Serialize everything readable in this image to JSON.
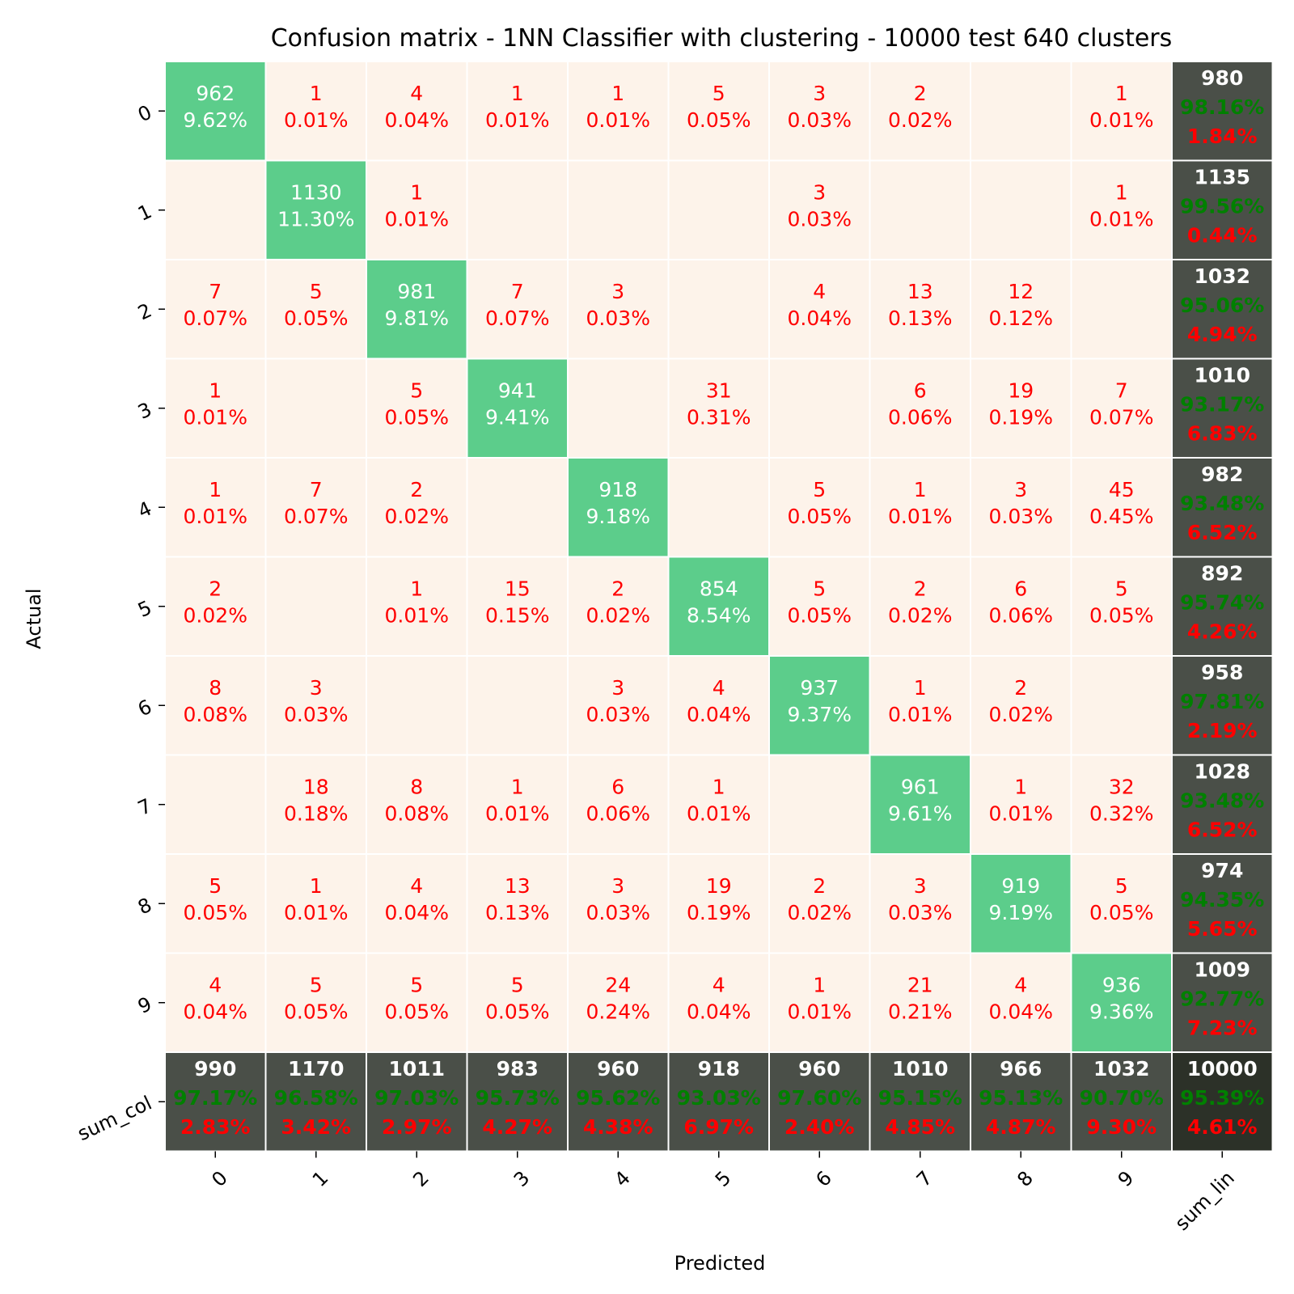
{
  "chart_data": {
    "type": "heatmap",
    "title": "Confusion matrix - 1NN Classifier with clustering - 10000 test 640 clusters",
    "xlabel": "Predicted",
    "ylabel": "Actual",
    "x_tick_labels": [
      "0",
      "1",
      "2",
      "3",
      "4",
      "5",
      "6",
      "7",
      "8",
      "9",
      "sum_lin"
    ],
    "y_tick_labels": [
      "0",
      "1",
      "2",
      "3",
      "4",
      "5",
      "6",
      "7",
      "8",
      "9",
      "sum_col"
    ],
    "classes": [
      "0",
      "1",
      "2",
      "3",
      "4",
      "5",
      "6",
      "7",
      "8",
      "9"
    ],
    "total": 10000,
    "matrix": [
      [
        962,
        1,
        4,
        1,
        1,
        5,
        3,
        2,
        0,
        1
      ],
      [
        0,
        1130,
        1,
        0,
        0,
        0,
        3,
        0,
        0,
        1
      ],
      [
        7,
        5,
        981,
        7,
        3,
        0,
        4,
        13,
        12,
        0
      ],
      [
        1,
        0,
        5,
        941,
        0,
        31,
        0,
        6,
        19,
        7
      ],
      [
        1,
        7,
        2,
        0,
        918,
        0,
        5,
        1,
        3,
        45
      ],
      [
        2,
        0,
        1,
        15,
        2,
        854,
        5,
        2,
        6,
        5
      ],
      [
        8,
        3,
        0,
        0,
        3,
        4,
        937,
        1,
        2,
        0
      ],
      [
        0,
        18,
        8,
        1,
        6,
        1,
        0,
        961,
        1,
        32
      ],
      [
        5,
        1,
        4,
        13,
        3,
        19,
        2,
        3,
        919,
        5
      ],
      [
        4,
        5,
        5,
        5,
        24,
        4,
        1,
        21,
        4,
        936
      ]
    ],
    "row_sums": [
      {
        "total": "980",
        "correct": "98.16%",
        "error": "1.84%"
      },
      {
        "total": "1135",
        "correct": "99.56%",
        "error": "0.44%"
      },
      {
        "total": "1032",
        "correct": "95.06%",
        "error": "4.94%"
      },
      {
        "total": "1010",
        "correct": "93.17%",
        "error": "6.83%"
      },
      {
        "total": "982",
        "correct": "93.48%",
        "error": "6.52%"
      },
      {
        "total": "892",
        "correct": "95.74%",
        "error": "4.26%"
      },
      {
        "total": "958",
        "correct": "97.81%",
        "error": "2.19%"
      },
      {
        "total": "1028",
        "correct": "93.48%",
        "error": "6.52%"
      },
      {
        "total": "974",
        "correct": "94.35%",
        "error": "5.65%"
      },
      {
        "total": "1009",
        "correct": "92.77%",
        "error": "7.23%"
      }
    ],
    "col_sums": [
      {
        "total": "990",
        "correct": "97.17%",
        "error": "2.83%"
      },
      {
        "total": "1170",
        "correct": "96.58%",
        "error": "3.42%"
      },
      {
        "total": "1011",
        "correct": "97.03%",
        "error": "2.97%"
      },
      {
        "total": "983",
        "correct": "95.73%",
        "error": "4.27%"
      },
      {
        "total": "960",
        "correct": "95.62%",
        "error": "4.38%"
      },
      {
        "total": "918",
        "correct": "93.03%",
        "error": "6.97%"
      },
      {
        "total": "960",
        "correct": "97.60%",
        "error": "2.40%"
      },
      {
        "total": "1010",
        "correct": "95.15%",
        "error": "4.85%"
      },
      {
        "total": "966",
        "correct": "95.13%",
        "error": "4.87%"
      },
      {
        "total": "1032",
        "correct": "90.70%",
        "error": "9.30%"
      }
    ],
    "grand_total": {
      "total": "10000",
      "correct": "95.39%",
      "error": "4.61%"
    },
    "colors": {
      "diagonal": "#5ccd8b",
      "off_diagonal": "#fdf3ea",
      "sum_cell": "#4a4f48",
      "grand_total_cell": "#2c3128",
      "grid": "#ffffff",
      "diag_text": "#ffffff",
      "off_text": "#ff0000",
      "sum_total_text": "#ffffff",
      "sum_correct_text": "#008000",
      "sum_error_text": "#ff0000"
    }
  }
}
